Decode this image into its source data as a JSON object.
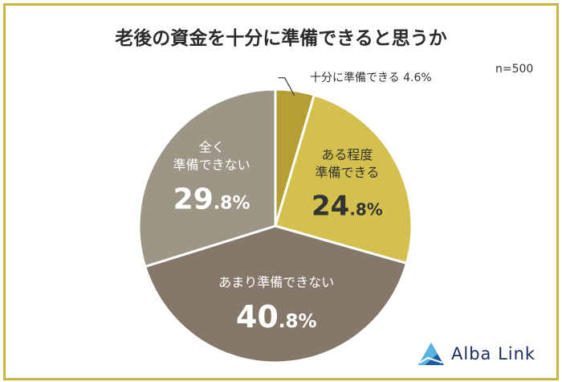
{
  "title": "老後の資金を十分に準備できると思うか",
  "sample_size": "n=500",
  "brand": "Alba Link",
  "chart_data": {
    "type": "pie",
    "title": "老後の資金を十分に準備できると思うか",
    "unit": "%",
    "slices": [
      {
        "label_lines": [
          "十分に準備できる"
        ],
        "value": 4.6,
        "color": "#b59f35",
        "label_color": "#333333",
        "callout": true
      },
      {
        "label_lines": [
          "ある程度",
          "準備できる"
        ],
        "value": 24.8,
        "color": "#d4c04e",
        "label_color": "#333333",
        "callout": false
      },
      {
        "label_lines": [
          "あまり準備できない"
        ],
        "value": 40.8,
        "color": "#85786a",
        "label_color": "#ffffff",
        "callout": false
      },
      {
        "label_lines": [
          "全く",
          "準備できない"
        ],
        "value": 29.8,
        "color": "#9d9585",
        "label_color": "#ffffff",
        "callout": false
      }
    ]
  },
  "colors": {
    "frame": "#c7b742",
    "logo_primary": "#1d5fa5",
    "logo_secondary": "#5bb3e0"
  }
}
